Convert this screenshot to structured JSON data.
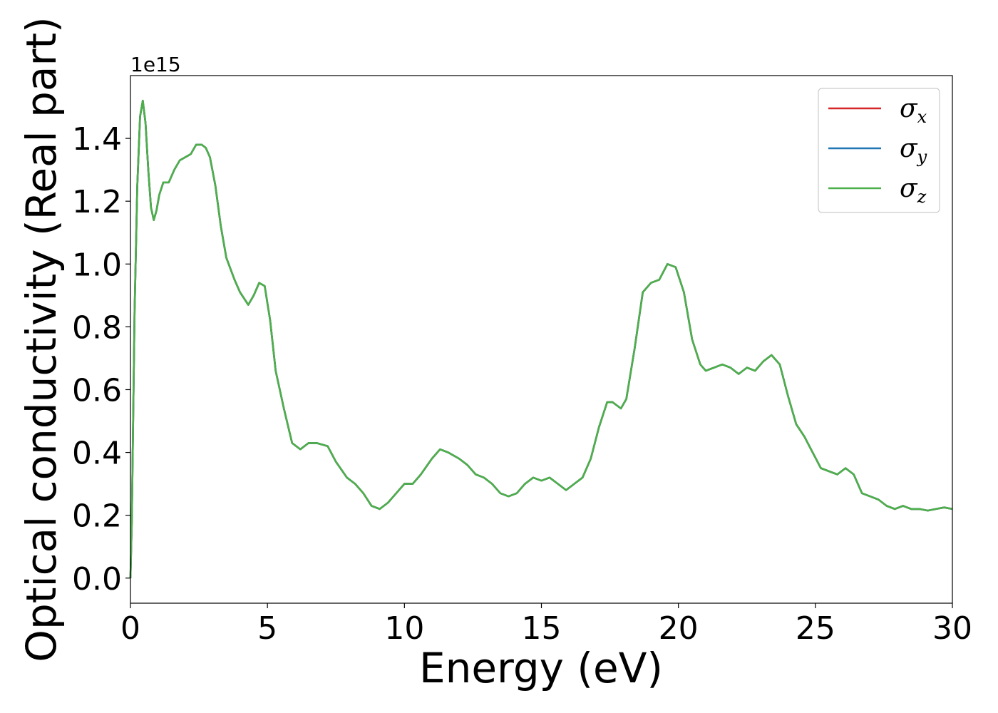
{
  "chart_data": {
    "type": "line",
    "xlabel": "Energy (eV)",
    "ylabel": "Optical conductivity (Real part)",
    "y_offset_text": "1e15",
    "xlim": [
      0,
      30
    ],
    "ylim": [
      -0.08,
      1.6
    ],
    "x_ticks": [
      0,
      5,
      10,
      15,
      20,
      25,
      30
    ],
    "x_tick_labels": [
      "0",
      "5",
      "10",
      "15",
      "20",
      "25",
      "30"
    ],
    "y_ticks": [
      0.0,
      0.2,
      0.4,
      0.6,
      0.8,
      1.0,
      1.2,
      1.4
    ],
    "y_tick_labels": [
      "0.0",
      "0.2",
      "0.4",
      "0.6",
      "0.8",
      "1.0",
      "1.2",
      "1.4"
    ],
    "grid": false,
    "legend_position": "top-right",
    "series": [
      {
        "name": "σ",
        "subscript": "x",
        "color": "#d62728",
        "x": [
          0,
          0.05,
          0.15,
          0.25,
          0.35,
          0.45,
          0.55,
          0.65,
          0.75,
          0.85,
          0.95,
          1.05,
          1.2,
          1.4,
          1.6,
          1.8,
          2.0,
          2.2,
          2.4,
          2.6,
          2.75,
          2.9,
          3.1,
          3.3,
          3.5,
          3.8,
          4.0,
          4.3,
          4.5,
          4.7,
          4.9,
          5.1,
          5.3,
          5.6,
          5.9,
          6.2,
          6.5,
          6.8,
          7.2,
          7.5,
          7.9,
          8.2,
          8.5,
          8.8,
          9.1,
          9.4,
          9.7,
          10.0,
          10.3,
          10.6,
          11.0,
          11.3,
          11.6,
          12.0,
          12.3,
          12.6,
          12.9,
          13.2,
          13.5,
          13.8,
          14.1,
          14.4,
          14.7,
          15.0,
          15.3,
          15.6,
          15.9,
          16.2,
          16.5,
          16.8,
          17.1,
          17.4,
          17.6,
          17.9,
          18.1,
          18.4,
          18.7,
          19.0,
          19.3,
          19.6,
          19.9,
          20.2,
          20.5,
          20.8,
          21.0,
          21.3,
          21.6,
          21.9,
          22.2,
          22.5,
          22.8,
          23.1,
          23.4,
          23.7,
          24.0,
          24.3,
          24.6,
          24.9,
          25.2,
          25.5,
          25.8,
          26.1,
          26.4,
          26.7,
          27.0,
          27.3,
          27.6,
          27.9,
          28.2,
          28.5,
          28.8,
          29.1,
          29.4,
          29.7,
          30.0
        ],
        "values": [
          0.0,
          0.18,
          0.85,
          1.25,
          1.47,
          1.52,
          1.45,
          1.3,
          1.18,
          1.14,
          1.17,
          1.22,
          1.26,
          1.26,
          1.3,
          1.33,
          1.34,
          1.35,
          1.38,
          1.38,
          1.37,
          1.34,
          1.25,
          1.12,
          1.02,
          0.95,
          0.91,
          0.87,
          0.9,
          0.94,
          0.93,
          0.82,
          0.66,
          0.54,
          0.43,
          0.41,
          0.43,
          0.43,
          0.42,
          0.37,
          0.32,
          0.3,
          0.27,
          0.23,
          0.22,
          0.24,
          0.27,
          0.3,
          0.3,
          0.33,
          0.38,
          0.41,
          0.4,
          0.38,
          0.36,
          0.33,
          0.32,
          0.3,
          0.27,
          0.26,
          0.27,
          0.3,
          0.32,
          0.31,
          0.32,
          0.3,
          0.28,
          0.3,
          0.32,
          0.38,
          0.48,
          0.56,
          0.56,
          0.54,
          0.57,
          0.73,
          0.91,
          0.94,
          0.95,
          1.0,
          0.99,
          0.91,
          0.76,
          0.68,
          0.66,
          0.67,
          0.68,
          0.67,
          0.65,
          0.67,
          0.66,
          0.69,
          0.71,
          0.68,
          0.58,
          0.49,
          0.45,
          0.4,
          0.35,
          0.34,
          0.33,
          0.35,
          0.33,
          0.27,
          0.26,
          0.25,
          0.23,
          0.22,
          0.23,
          0.22,
          0.22,
          0.215,
          0.22,
          0.225,
          0.22
        ]
      },
      {
        "name": "σ",
        "subscript": "y",
        "color": "#1f77b4"
      },
      {
        "name": "σ",
        "subscript": "z",
        "color": "#4daf4a"
      }
    ]
  }
}
